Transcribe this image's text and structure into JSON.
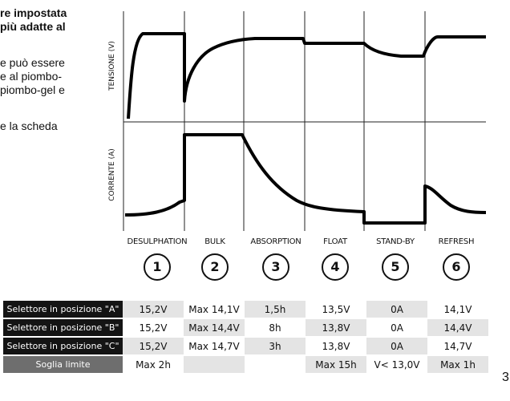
{
  "intro": {
    "line1": "re impostata",
    "line2": "più adatte al",
    "line3": "e può essere",
    "line4": "e al piombo-",
    "line5": "piombo-gel e",
    "line6": "e la scheda"
  },
  "chart_data": {
    "type": "line",
    "title": "",
    "ylabel_top": "TENSIONE (V)",
    "ylabel_bottom": "CORRENTE (A)",
    "stages": [
      {
        "name": "DESULPHATION",
        "number": "1"
      },
      {
        "name": "BULK",
        "number": "2"
      },
      {
        "name": "ABSORPTION",
        "number": "3"
      },
      {
        "name": "FLOAT",
        "number": "4"
      },
      {
        "name": "STAND-BY",
        "number": "5"
      },
      {
        "name": "REFRESH",
        "number": "6"
      }
    ],
    "grid": true
  },
  "table": {
    "rows": [
      {
        "label": "Selettore in posizione \"A\"",
        "cells": [
          "15,2V",
          "Max 14,1V",
          "1,5h",
          "13,5V",
          "0A",
          "14,1V"
        ]
      },
      {
        "label": "Selettore in posizione \"B\"",
        "cells": [
          "15,2V",
          "Max 14,4V",
          "8h",
          "13,8V",
          "0A",
          "14,4V"
        ]
      },
      {
        "label": "Selettore in posizione \"C\"",
        "cells": [
          "15,2V",
          "Max 14,7V",
          "3h",
          "13,8V",
          "0A",
          "14,7V"
        ]
      },
      {
        "label": "Soglia limite",
        "cells": [
          "Max 2h",
          "",
          "",
          "Max 15h",
          "V< 13,0V",
          "Max 1h"
        ]
      }
    ]
  },
  "page_number": "3"
}
